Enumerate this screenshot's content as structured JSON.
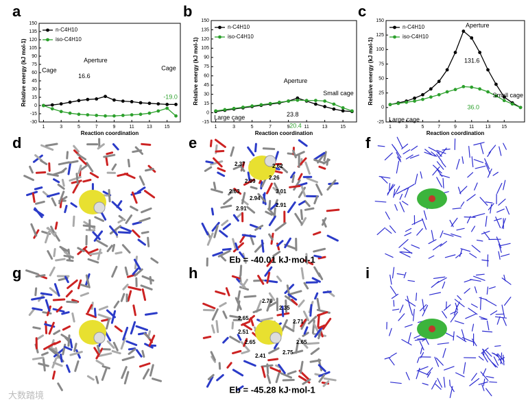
{
  "chart_data": [
    {
      "type": "line",
      "panel": "a",
      "xlabel": "Reaction coordination",
      "ylabel": "Relative energy (kJ mol-1)",
      "x": [
        1,
        2,
        3,
        4,
        5,
        6,
        7,
        8,
        9,
        10,
        11,
        12,
        13,
        14,
        15,
        16
      ],
      "xlim": [
        0.5,
        16.5
      ],
      "xticks": [
        1,
        3,
        5,
        7,
        9,
        11,
        13,
        15
      ],
      "ylim": [
        -30,
        150
      ],
      "yticks": [
        -30,
        -15,
        0,
        15,
        30,
        45,
        60,
        75,
        90,
        105,
        120,
        135,
        150
      ],
      "series": [
        {
          "name": "n-C4H10",
          "color": "#000000",
          "values": [
            0,
            1,
            3,
            6,
            9,
            11,
            12,
            16.6,
            10,
            8,
            7,
            5,
            4,
            3,
            2,
            2
          ]
        },
        {
          "name": "iso-C4H10",
          "color": "#2ca02c",
          "values": [
            0,
            -6,
            -11,
            -14,
            -16,
            -17,
            -18,
            -19,
            -19,
            -18,
            -17,
            -16,
            -14,
            -10,
            -5,
            -19
          ]
        }
      ],
      "annotations": [
        "Cage",
        "Aperture",
        "Cage",
        "16.6",
        "-19.0"
      ]
    },
    {
      "type": "line",
      "panel": "b",
      "xlabel": "Reaction coordination",
      "ylabel": "Relative energy (kJ mol-1)",
      "x": [
        1,
        2,
        3,
        4,
        5,
        6,
        7,
        8,
        9,
        10,
        11,
        12,
        13,
        14,
        15,
        16
      ],
      "xlim": [
        0.5,
        16.5
      ],
      "xticks": [
        1,
        3,
        5,
        7,
        9,
        11,
        13,
        15
      ],
      "ylim": [
        -15,
        150
      ],
      "yticks": [
        -15,
        0,
        15,
        30,
        45,
        60,
        75,
        90,
        105,
        120,
        135,
        150
      ],
      "series": [
        {
          "name": "n-C4H10",
          "color": "#000000",
          "values": [
            2,
            4,
            6,
            8,
            10,
            12,
            14,
            16,
            19,
            23.8,
            19,
            14,
            10,
            6,
            3,
            2
          ]
        },
        {
          "name": "iso-C4H10",
          "color": "#2ca02c",
          "values": [
            3,
            5,
            7,
            9,
            11,
            13,
            15,
            17,
            19,
            20.4,
            20,
            20,
            19,
            14,
            8,
            3
          ]
        }
      ],
      "annotations": [
        "Large cage",
        "Aperture",
        "Small cage",
        "23.8",
        "20.4"
      ]
    },
    {
      "type": "line",
      "panel": "c",
      "xlabel": "Reaction coordination",
      "ylabel": "Relative energy (kJ mol-1)",
      "x": [
        1,
        2,
        3,
        4,
        5,
        6,
        7,
        8,
        9,
        10,
        11,
        12,
        13,
        14,
        15,
        16,
        17
      ],
      "xlim": [
        0.5,
        17.5
      ],
      "xticks": [
        1,
        3,
        5,
        7,
        9,
        11,
        13,
        15
      ],
      "ylim": [
        -25,
        150
      ],
      "yticks": [
        -25,
        0,
        25,
        50,
        75,
        100,
        125,
        150
      ],
      "series": [
        {
          "name": "n-C4H10",
          "color": "#000000",
          "values": [
            5,
            8,
            11,
            16,
            22,
            32,
            45,
            65,
            95,
            131.6,
            120,
            95,
            65,
            40,
            18,
            8,
            0
          ]
        },
        {
          "name": "iso-C4H10",
          "color": "#2ca02c",
          "values": [
            5,
            7,
            9,
            11,
            14,
            18,
            22,
            27,
            31,
            36.0,
            35,
            32,
            27,
            20,
            12,
            6,
            0
          ]
        }
      ],
      "annotations": [
        "Aperture",
        "Large cage",
        "Small cage",
        "131.6",
        "36.0"
      ]
    }
  ],
  "panels": {
    "labels": [
      "d",
      "e",
      "f",
      "g",
      "h",
      "i"
    ],
    "e": {
      "energy": "Eb = -40.01 kJ·mol-1",
      "distances": [
        "2.37",
        "2.62",
        "2.99",
        "2.26",
        "2.63",
        "2.94",
        "3.01",
        "2.91",
        "2.91"
      ]
    },
    "h": {
      "energy": "Eb = -45.28 kJ·mol-1",
      "distances": [
        "2.70",
        "2.35",
        "2.65",
        "2.71",
        "2.51",
        "2.65",
        "2.65",
        "2.41",
        "2.75"
      ]
    }
  },
  "watermark": "大数踏境"
}
